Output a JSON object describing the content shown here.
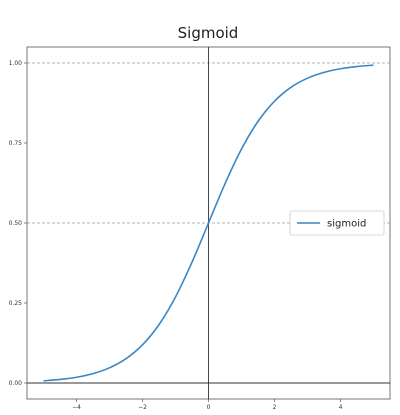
{
  "chart_data": {
    "type": "line",
    "title": "Sigmoid",
    "xlabel": "",
    "ylabel": "",
    "xlim": [
      -5.5,
      5.5
    ],
    "ylim": [
      -0.05,
      1.05
    ],
    "x_ticks": [
      -4,
      -2,
      0,
      2,
      4
    ],
    "x_tick_labels": [
      "−4",
      "−2",
      "0",
      "2",
      "4"
    ],
    "y_ticks": [
      0.0,
      0.25,
      0.5,
      0.75,
      1.0
    ],
    "y_tick_labels": [
      "0.00",
      "0.25",
      "0.50",
      "0.75",
      "1.00"
    ],
    "grid": false,
    "reference_lines": {
      "dashed_horizontal": [
        0.5,
        1.0
      ],
      "solid_horizontal": [
        0.0
      ],
      "solid_vertical": [
        0.0
      ]
    },
    "legend": {
      "placement": "center-right",
      "entries": [
        "sigmoid"
      ]
    },
    "series": [
      {
        "name": "sigmoid",
        "color": "#3a87c6",
        "x": [
          -5,
          -4.5,
          -4,
          -3.5,
          -3,
          -2.5,
          -2,
          -1.5,
          -1,
          -0.5,
          0,
          0.5,
          1,
          1.5,
          2,
          2.5,
          3,
          3.5,
          4,
          4.5,
          5
        ],
        "y": [
          0.0067,
          0.011,
          0.018,
          0.0293,
          0.0474,
          0.0759,
          0.1192,
          0.1824,
          0.2689,
          0.3775,
          0.5,
          0.6225,
          0.7311,
          0.8176,
          0.8808,
          0.9241,
          0.9526,
          0.9707,
          0.982,
          0.989,
          0.9933
        ]
      }
    ]
  }
}
